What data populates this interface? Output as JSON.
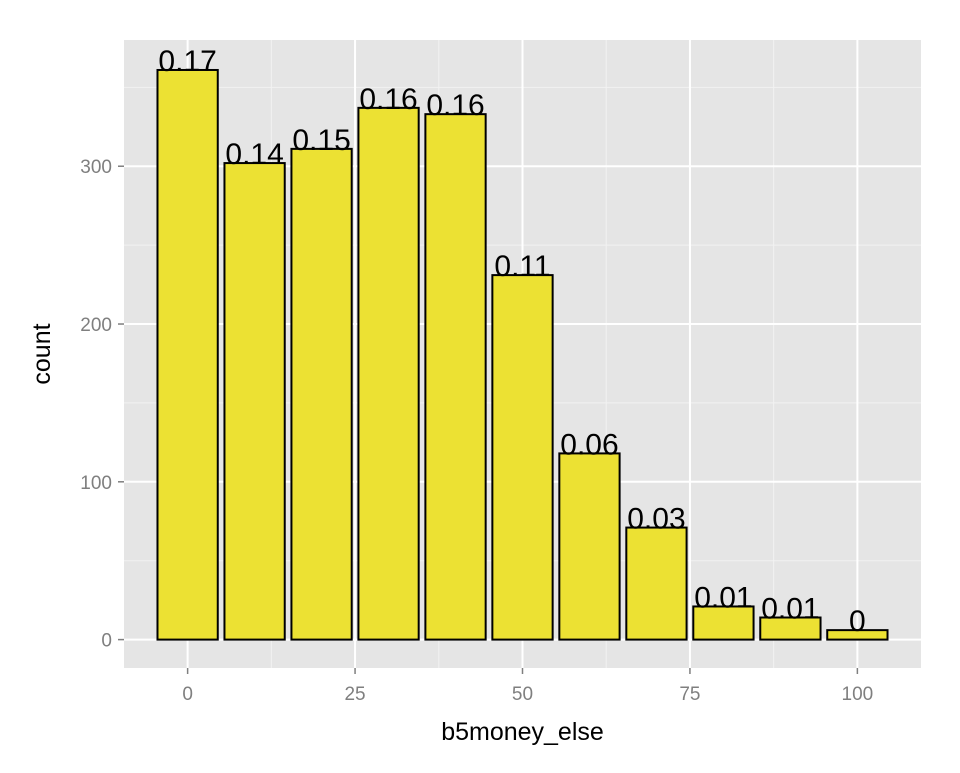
{
  "chart_data": {
    "type": "bar",
    "title": "",
    "xlabel": "b5money_else",
    "ylabel": "count",
    "x": [
      0,
      10,
      20,
      30,
      40,
      50,
      60,
      70,
      80,
      90,
      100
    ],
    "values": [
      361,
      302,
      311,
      337,
      333,
      231,
      118,
      71,
      21,
      14,
      6
    ],
    "data_labels": [
      "0.17",
      "0.14",
      "0.15",
      "0.16",
      "0.16",
      "0.11",
      "0.06",
      "0.03",
      "0.01",
      "0.01",
      "0"
    ],
    "bar_width": 9,
    "xlim": [
      -9.5,
      109.5
    ],
    "ylim": [
      -18,
      380
    ],
    "xticks": [
      {
        "value": 0,
        "label": "0"
      },
      {
        "value": 25,
        "label": "25"
      },
      {
        "value": 50,
        "label": "50"
      },
      {
        "value": 75,
        "label": "75"
      },
      {
        "value": 100,
        "label": "100"
      }
    ],
    "yticks": [
      {
        "value": 0,
        "label": "0"
      },
      {
        "value": 100,
        "label": "100"
      },
      {
        "value": 200,
        "label": "200"
      },
      {
        "value": 300,
        "label": "300"
      }
    ],
    "x_minor_breaks": [
      12.5,
      37.5,
      62.5,
      87.5
    ],
    "y_minor_breaks": [
      50,
      150,
      250,
      350
    ],
    "grid": true,
    "legend": "none",
    "colors": {
      "panel_background": "#e5e5e5",
      "grid_major": "#ffffff",
      "grid_minor": "#f2f2f2",
      "bar_fill": "#ece133",
      "bar_outline": "#000000"
    }
  }
}
